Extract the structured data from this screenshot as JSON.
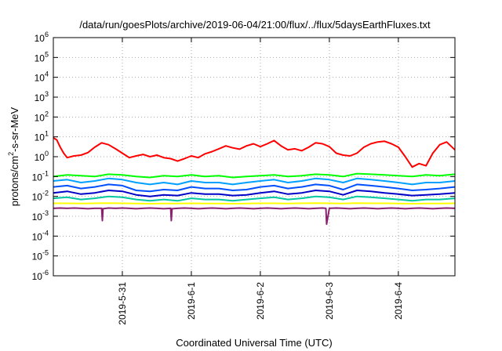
{
  "chart_data": {
    "type": "line",
    "title": "/data/run/goesPlots/archive/2019-06-04/21:00/flux/../flux/5daysEarthFluxes.txt",
    "xlabel": "Coordinated Universal Time (UTC)",
    "ylabel": {
      "prefix": "protons/cm",
      "sup": "2",
      "suffix": "-s-sr-MeV"
    },
    "yscale": "log",
    "ylim": [
      1e-06,
      1000000.0
    ],
    "y_ticks": [
      {
        "base": "10",
        "exp": "6",
        "value": 1000000.0
      },
      {
        "base": "10",
        "exp": "5",
        "value": 100000.0
      },
      {
        "base": "10",
        "exp": "4",
        "value": 10000.0
      },
      {
        "base": "10",
        "exp": "3",
        "value": 1000.0
      },
      {
        "base": "10",
        "exp": "2",
        "value": 100.0
      },
      {
        "base": "10",
        "exp": "1",
        "value": 10.0
      },
      {
        "base": "10",
        "exp": "0",
        "value": 1.0
      },
      {
        "base": "10",
        "exp": "-1",
        "value": 0.1
      },
      {
        "base": "10",
        "exp": "-2",
        "value": 0.01
      },
      {
        "base": "10",
        "exp": "-3",
        "value": 0.001
      },
      {
        "base": "10",
        "exp": "-4",
        "value": 0.0001
      },
      {
        "base": "10",
        "exp": "-5",
        "value": 1e-05
      },
      {
        "base": "10",
        "exp": "-6",
        "value": 1e-06
      }
    ],
    "x_range_days": [
      0,
      5.82
    ],
    "x_ticks": [
      {
        "label": "2019-5-31",
        "day": 1.0
      },
      {
        "label": "2019-6-1",
        "day": 2.0
      },
      {
        "label": "2019-6-2",
        "day": 3.0
      },
      {
        "label": "2019-6-3",
        "day": 4.0
      },
      {
        "label": "2019-6-4",
        "day": 5.0
      }
    ],
    "grid": true,
    "series": [
      {
        "color": "#ff0000",
        "x": [
          0.0,
          0.05,
          0.1,
          0.15,
          0.2,
          0.3,
          0.4,
          0.5,
          0.6,
          0.7,
          0.8,
          0.9,
          1.0,
          1.1,
          1.2,
          1.3,
          1.4,
          1.5,
          1.6,
          1.7,
          1.8,
          1.9,
          2.0,
          2.1,
          2.2,
          2.3,
          2.4,
          2.5,
          2.6,
          2.7,
          2.8,
          2.9,
          3.0,
          3.1,
          3.2,
          3.3,
          3.4,
          3.5,
          3.6,
          3.7,
          3.8,
          3.9,
          4.0,
          4.1,
          4.2,
          4.3,
          4.4,
          4.5,
          4.6,
          4.7,
          4.8,
          4.9,
          5.0,
          5.1,
          5.2,
          5.3,
          5.4,
          5.5,
          5.6,
          5.7,
          5.82
        ],
        "values": [
          9,
          7,
          3,
          1.5,
          0.9,
          1.1,
          1.2,
          1.6,
          3,
          5,
          4,
          2.5,
          1.5,
          0.9,
          1.1,
          1.3,
          1.0,
          1.2,
          0.9,
          0.8,
          0.6,
          0.8,
          1.1,
          0.9,
          1.4,
          1.8,
          2.5,
          3.5,
          2.8,
          2.4,
          3.5,
          4.5,
          3.2,
          4.5,
          6.5,
          3.5,
          2.2,
          2.5,
          2.0,
          3.0,
          5.0,
          4.5,
          3.2,
          1.5,
          1.2,
          1.1,
          1.5,
          3.0,
          4.5,
          5.5,
          6.0,
          4.5,
          3.0,
          1.0,
          0.3,
          0.45,
          0.35,
          1.5,
          4.0,
          5.5,
          2.2
        ]
      },
      {
        "color": "#00ff00",
        "x": [
          0.0,
          0.2,
          0.4,
          0.6,
          0.8,
          1.0,
          1.2,
          1.4,
          1.6,
          1.8,
          2.0,
          2.2,
          2.4,
          2.6,
          2.8,
          3.0,
          3.2,
          3.4,
          3.6,
          3.8,
          4.0,
          4.2,
          4.4,
          4.6,
          4.8,
          5.0,
          5.2,
          5.4,
          5.6,
          5.82
        ],
        "values": [
          0.1,
          0.12,
          0.11,
          0.1,
          0.13,
          0.12,
          0.1,
          0.09,
          0.11,
          0.1,
          0.12,
          0.1,
          0.11,
          0.09,
          0.1,
          0.11,
          0.12,
          0.1,
          0.11,
          0.13,
          0.12,
          0.1,
          0.14,
          0.13,
          0.12,
          0.11,
          0.1,
          0.12,
          0.11,
          0.13
        ]
      },
      {
        "color": "#00a0ff",
        "x": [
          0.0,
          0.2,
          0.4,
          0.6,
          0.8,
          1.0,
          1.2,
          1.4,
          1.6,
          1.8,
          2.0,
          2.2,
          2.4,
          2.6,
          2.8,
          3.0,
          3.2,
          3.4,
          3.6,
          3.8,
          4.0,
          4.2,
          4.4,
          4.6,
          4.8,
          5.0,
          5.2,
          5.4,
          5.6,
          5.82
        ],
        "values": [
          0.06,
          0.07,
          0.05,
          0.06,
          0.08,
          0.07,
          0.05,
          0.04,
          0.05,
          0.04,
          0.06,
          0.05,
          0.05,
          0.04,
          0.05,
          0.06,
          0.07,
          0.05,
          0.06,
          0.08,
          0.07,
          0.05,
          0.08,
          0.07,
          0.06,
          0.05,
          0.04,
          0.05,
          0.05,
          0.06
        ]
      },
      {
        "color": "#0050ff",
        "x": [
          0.0,
          0.2,
          0.4,
          0.6,
          0.8,
          1.0,
          1.2,
          1.4,
          1.6,
          1.8,
          2.0,
          2.2,
          2.4,
          2.6,
          2.8,
          3.0,
          3.2,
          3.4,
          3.6,
          3.8,
          4.0,
          4.2,
          4.4,
          4.6,
          4.8,
          5.0,
          5.2,
          5.4,
          5.6,
          5.82
        ],
        "values": [
          0.03,
          0.035,
          0.025,
          0.03,
          0.04,
          0.035,
          0.02,
          0.018,
          0.022,
          0.02,
          0.03,
          0.025,
          0.025,
          0.02,
          0.022,
          0.03,
          0.035,
          0.025,
          0.03,
          0.04,
          0.035,
          0.022,
          0.04,
          0.035,
          0.03,
          0.025,
          0.02,
          0.022,
          0.025,
          0.03
        ]
      },
      {
        "color": "#0000c8",
        "x": [
          0.0,
          0.2,
          0.4,
          0.6,
          0.8,
          1.0,
          1.2,
          1.4,
          1.6,
          1.8,
          2.0,
          2.2,
          2.4,
          2.6,
          2.8,
          3.0,
          3.2,
          3.4,
          3.6,
          3.8,
          4.0,
          4.2,
          4.4,
          4.6,
          4.8,
          5.0,
          5.2,
          5.4,
          5.6,
          5.82
        ],
        "values": [
          0.015,
          0.018,
          0.013,
          0.015,
          0.02,
          0.018,
          0.012,
          0.01,
          0.012,
          0.011,
          0.015,
          0.013,
          0.013,
          0.011,
          0.012,
          0.015,
          0.018,
          0.013,
          0.015,
          0.02,
          0.018,
          0.012,
          0.02,
          0.018,
          0.015,
          0.013,
          0.011,
          0.012,
          0.013,
          0.015
        ]
      },
      {
        "color": "#00c8a0",
        "x": [
          0.0,
          0.2,
          0.4,
          0.6,
          0.8,
          1.0,
          1.2,
          1.4,
          1.6,
          1.8,
          2.0,
          2.2,
          2.4,
          2.6,
          2.8,
          3.0,
          3.2,
          3.4,
          3.6,
          3.8,
          4.0,
          4.2,
          4.4,
          4.6,
          4.8,
          5.0,
          5.2,
          5.4,
          5.6,
          5.82
        ],
        "values": [
          0.008,
          0.009,
          0.007,
          0.008,
          0.01,
          0.009,
          0.007,
          0.006,
          0.007,
          0.006,
          0.008,
          0.007,
          0.007,
          0.006,
          0.007,
          0.008,
          0.009,
          0.007,
          0.008,
          0.01,
          0.009,
          0.007,
          0.01,
          0.009,
          0.008,
          0.007,
          0.006,
          0.007,
          0.007,
          0.008
        ]
      },
      {
        "color": "#ffff00",
        "x": [
          0.0,
          0.2,
          0.4,
          0.6,
          0.8,
          1.0,
          1.2,
          1.4,
          1.6,
          1.8,
          2.0,
          2.2,
          2.4,
          2.6,
          2.8,
          3.0,
          3.2,
          3.4,
          3.6,
          3.8,
          4.0,
          4.2,
          4.4,
          4.6,
          4.8,
          5.0,
          5.2,
          5.4,
          5.6,
          5.82
        ],
        "values": [
          0.0045,
          0.0045,
          0.0044,
          0.0045,
          0.0046,
          0.0045,
          0.0044,
          0.0043,
          0.0044,
          0.0044,
          0.0045,
          0.0044,
          0.0044,
          0.0043,
          0.0044,
          0.0045,
          0.0045,
          0.0044,
          0.0045,
          0.0046,
          0.0045,
          0.0044,
          0.0046,
          0.0045,
          0.0045,
          0.0044,
          0.0043,
          0.0044,
          0.0044,
          0.0045
        ]
      },
      {
        "color": "#8b2070",
        "x": [
          0.0,
          0.1,
          0.2,
          0.3,
          0.4,
          0.5,
          0.6,
          0.7,
          0.71,
          0.72,
          0.8,
          0.9,
          1.0,
          1.1,
          1.2,
          1.3,
          1.4,
          1.5,
          1.6,
          1.7,
          1.71,
          1.72,
          1.8,
          1.9,
          2.0,
          2.1,
          2.2,
          2.3,
          2.4,
          2.5,
          2.6,
          2.7,
          2.8,
          2.9,
          3.0,
          3.1,
          3.2,
          3.3,
          3.4,
          3.5,
          3.6,
          3.7,
          3.8,
          3.9,
          3.95,
          3.96,
          4.0,
          4.1,
          4.2,
          4.3,
          4.4,
          4.5,
          4.6,
          4.7,
          4.8,
          4.9,
          5.0,
          5.1,
          5.2,
          5.3,
          5.4,
          5.5,
          5.6,
          5.7,
          5.82
        ],
        "values": [
          0.0025,
          0.0026,
          0.0025,
          0.0026,
          0.0025,
          0.0024,
          0.0025,
          0.0025,
          0.0006,
          0.0024,
          0.0026,
          0.0025,
          0.0026,
          0.0025,
          0.0024,
          0.0025,
          0.0026,
          0.0025,
          0.0024,
          0.0025,
          0.0006,
          0.0024,
          0.0025,
          0.0026,
          0.0025,
          0.0024,
          0.0025,
          0.0026,
          0.0025,
          0.0024,
          0.0025,
          0.0026,
          0.0025,
          0.0024,
          0.0025,
          0.0026,
          0.0025,
          0.0024,
          0.0025,
          0.0026,
          0.0025,
          0.0024,
          0.0025,
          0.0026,
          0.0025,
          0.0004,
          0.0025,
          0.0026,
          0.0025,
          0.0024,
          0.0025,
          0.0026,
          0.0025,
          0.0024,
          0.0025,
          0.0026,
          0.0025,
          0.0024,
          0.0025,
          0.0026,
          0.0025,
          0.0024,
          0.0025,
          0.0026,
          0.0025
        ]
      }
    ]
  }
}
